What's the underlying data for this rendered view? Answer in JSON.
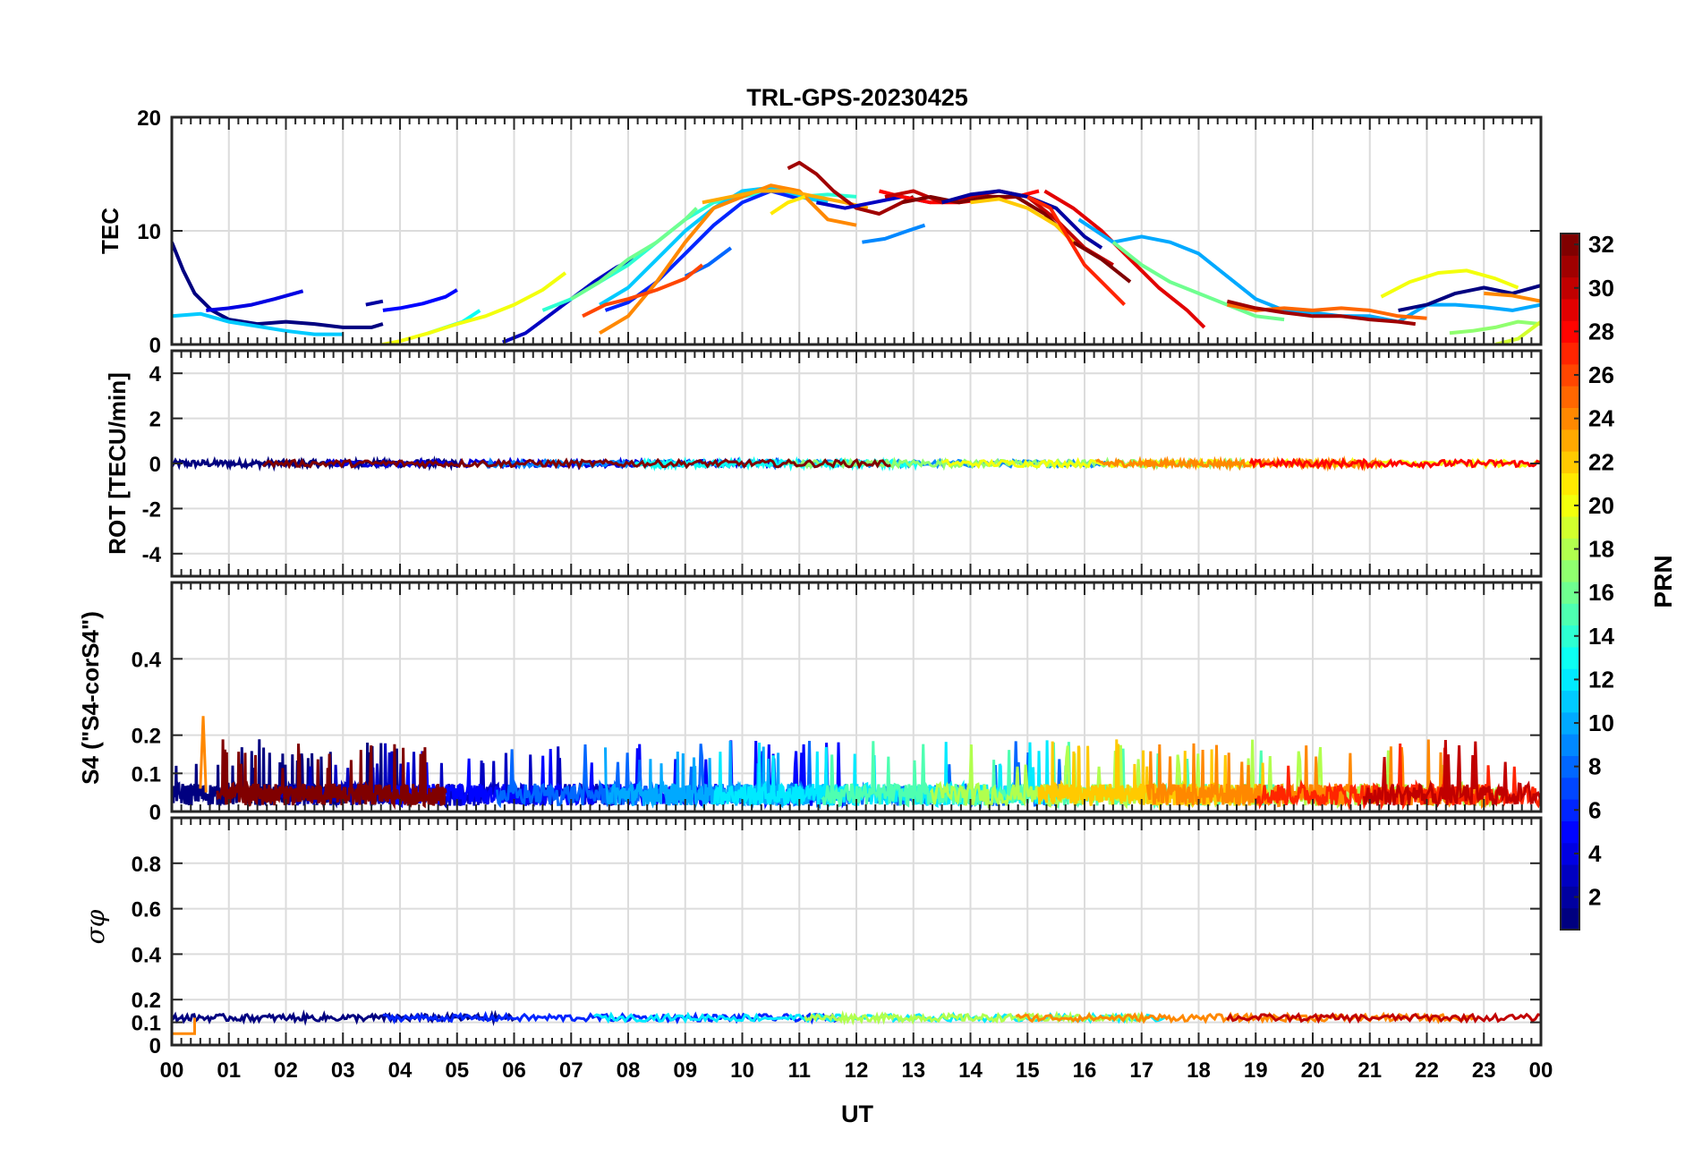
{
  "chart_data": {
    "type": "line",
    "title": "TRL-GPS-20230425",
    "xlabel": "UT",
    "x_tick_labels": [
      "00",
      "01",
      "02",
      "03",
      "04",
      "05",
      "06",
      "07",
      "08",
      "09",
      "10",
      "11",
      "12",
      "13",
      "14",
      "15",
      "16",
      "17",
      "18",
      "19",
      "20",
      "21",
      "22",
      "23",
      "00"
    ],
    "xlim": [
      0,
      24
    ],
    "grid": true,
    "panels": [
      {
        "id": "tec",
        "ylabel": "TEC",
        "ylim": [
          0,
          20
        ],
        "y_ticks": [
          0,
          10,
          20
        ],
        "y_tick_labels": [
          "0",
          "10",
          "20"
        ],
        "series": [
          {
            "prn": 1,
            "x": [
              0.0,
              0.2,
              0.4,
              0.7,
              1.0,
              1.5,
              2.0,
              2.5,
              3.0,
              3.5,
              3.7
            ],
            "y": [
              9.0,
              6.5,
              4.5,
              3.0,
              2.2,
              1.8,
              2.0,
              1.8,
              1.5,
              1.5,
              1.8
            ]
          },
          {
            "prn": 4,
            "x": [
              0.6,
              1.0,
              1.4,
              1.8,
              2.3
            ],
            "y": [
              3.0,
              3.2,
              3.5,
              4.0,
              4.7
            ]
          },
          {
            "prn": 2,
            "x": [
              3.4,
              3.7
            ],
            "y": [
              3.5,
              3.8
            ]
          },
          {
            "prn": 3,
            "x": [
              5.8,
              6.2,
              6.6,
              7.0,
              7.4,
              7.8,
              8.1
            ],
            "y": [
              0.2,
              1.0,
              2.5,
              4.0,
              5.5,
              6.8,
              7.5
            ]
          },
          {
            "prn": 5,
            "x": [
              3.7,
              4.0,
              4.4,
              4.8,
              5.0
            ],
            "y": [
              3.0,
              3.2,
              3.6,
              4.2,
              4.8
            ]
          },
          {
            "prn": 11,
            "x": [
              0.0,
              0.5,
              1.0,
              1.5,
              2.0,
              2.5,
              3.0
            ],
            "y": [
              2.5,
              2.7,
              2.0,
              1.6,
              1.2,
              0.9,
              0.9
            ]
          },
          {
            "prn": 13,
            "x": [
              4.5,
              4.8,
              5.1,
              5.4
            ],
            "y": [
              1.0,
              1.5,
              2.0,
              3.0
            ]
          },
          {
            "prn": 20,
            "x": [
              3.5,
              4.0,
              4.5,
              5.0,
              5.5,
              6.0,
              6.5,
              6.9
            ],
            "y": [
              -0.2,
              0.3,
              1.0,
              1.8,
              2.5,
              3.5,
              4.8,
              6.3
            ]
          },
          {
            "prn": 14,
            "x": [
              6.5,
              7.0,
              7.5,
              8.0,
              8.5,
              9.0,
              9.5,
              10.0,
              10.5,
              11.0,
              11.5,
              12.0
            ],
            "y": [
              3.0,
              4.0,
              5.5,
              7.0,
              9.0,
              11.0,
              12.5,
              13.0,
              13.5,
              13.0,
              13.2,
              13.0
            ]
          },
          {
            "prn": 16,
            "x": [
              7.0,
              7.5,
              8.0,
              8.5,
              9.0,
              9.2
            ],
            "y": [
              4.0,
              5.5,
              7.5,
              9.0,
              11.0,
              12.0
            ]
          },
          {
            "prn": 11,
            "x": [
              7.5,
              8.0,
              8.5,
              9.0,
              9.5,
              10.0,
              10.5,
              11.0,
              11.5
            ],
            "y": [
              3.5,
              5.0,
              7.5,
              10.0,
              12.0,
              13.5,
              13.8,
              13.0,
              12.5
            ]
          },
          {
            "prn": 6,
            "x": [
              7.6,
              8.0,
              8.5,
              9.0,
              9.5,
              10.0,
              10.5,
              11.0
            ],
            "y": [
              3.0,
              3.7,
              5.5,
              8.0,
              10.5,
              12.5,
              13.5,
              12.8
            ]
          },
          {
            "prn": 8,
            "x": [
              9.0,
              9.4,
              9.8
            ],
            "y": [
              6.0,
              7.0,
              8.5
            ]
          },
          {
            "prn": 24,
            "x": [
              7.5,
              8.0,
              8.5,
              9.0,
              9.5,
              10.0,
              10.5,
              11.0,
              11.5,
              12.0
            ],
            "y": [
              1.0,
              2.5,
              5.5,
              9.0,
              12.0,
              13.0,
              14.0,
              13.5,
              11.0,
              10.5
            ]
          },
          {
            "prn": 26,
            "x": [
              7.2,
              7.6,
              8.0,
              8.5,
              9.0,
              9.3
            ],
            "y": [
              2.5,
              3.5,
              4.0,
              4.8,
              5.8,
              7.0
            ]
          },
          {
            "prn": 23,
            "x": [
              9.3,
              9.8,
              10.3,
              10.8,
              11.3,
              11.8,
              12.2
            ],
            "y": [
              12.5,
              13.0,
              13.5,
              13.5,
              13.0,
              12.5,
              12.0
            ]
          },
          {
            "prn": 21,
            "x": [
              10.5,
              10.8,
              11.1
            ],
            "y": [
              11.5,
              12.5,
              13.0
            ]
          },
          {
            "prn": 31,
            "x": [
              10.8,
              11.0,
              11.3,
              11.6,
              12.0,
              12.4,
              12.8,
              13.0
            ],
            "y": [
              15.5,
              16.0,
              15.0,
              13.5,
              12.0,
              11.5,
              12.5,
              13.0
            ]
          },
          {
            "prn": 3,
            "x": [
              11.3,
              11.8,
              12.3,
              12.8,
              13.3
            ],
            "y": [
              12.5,
              12.0,
              12.5,
              13.0,
              12.5
            ]
          },
          {
            "prn": 9,
            "x": [
              12.1,
              12.5,
              12.9,
              13.2
            ],
            "y": [
              9.0,
              9.3,
              10.0,
              10.5
            ]
          },
          {
            "prn": 28,
            "x": [
              12.4,
              12.8,
              13.3,
              13.8,
              14.3,
              14.8,
              15.2
            ],
            "y": [
              13.5,
              13.0,
              12.5,
              12.5,
              12.8,
              13.0,
              13.5
            ]
          },
          {
            "prn": 30,
            "x": [
              12.5,
              13.0,
              13.5,
              14.0,
              14.5,
              15.0,
              15.5,
              16.0,
              16.5
            ],
            "y": [
              13.0,
              13.5,
              12.5,
              13.0,
              13.5,
              13.0,
              11.0,
              8.5,
              7.0
            ]
          },
          {
            "prn": 32,
            "x": [
              12.8,
              13.3,
              13.8,
              14.3,
              14.8,
              15.3,
              15.8,
              16.3,
              16.8
            ],
            "y": [
              12.5,
              13.0,
              12.5,
              13.0,
              13.0,
              11.5,
              9.0,
              7.5,
              5.5
            ]
          },
          {
            "prn": 2,
            "x": [
              13.5,
              14.0,
              14.5,
              15.0,
              15.5,
              16.0,
              16.3
            ],
            "y": [
              12.5,
              13.2,
              13.5,
              13.0,
              12.0,
              9.5,
              8.5
            ]
          },
          {
            "prn": 22,
            "x": [
              14.0,
              14.5,
              15.0,
              15.5,
              15.8
            ],
            "y": [
              12.5,
              12.8,
              12.0,
              10.5,
              9.0
            ]
          },
          {
            "prn": 27,
            "x": [
              15.0,
              15.4,
              15.7,
              16.0,
              16.3,
              16.7
            ],
            "y": [
              13.0,
              12.0,
              9.5,
              7.0,
              5.5,
              3.5
            ]
          },
          {
            "prn": 29,
            "x": [
              15.3,
              15.8,
              16.3,
              16.8,
              17.3,
              17.8,
              18.1
            ],
            "y": [
              13.5,
              12.0,
              10.0,
              7.5,
              5.0,
              3.0,
              1.5
            ]
          },
          {
            "prn": 10,
            "x": [
              15.9,
              16.5,
              17.0,
              17.5,
              18.0,
              18.5,
              19.0,
              19.5,
              20.0,
              20.5,
              21.0,
              21.5,
              22.0,
              22.5,
              23.0,
              23.5,
              24.0
            ],
            "y": [
              11.0,
              9.0,
              9.5,
              9.0,
              8.0,
              6.0,
              4.0,
              3.0,
              2.8,
              2.5,
              2.5,
              2.0,
              3.5,
              3.5,
              3.3,
              3.0,
              3.5
            ]
          },
          {
            "prn": 16,
            "x": [
              16.5,
              17.0,
              17.5,
              18.0,
              18.5,
              19.0,
              19.5
            ],
            "y": [
              9.0,
              7.0,
              5.5,
              4.5,
              3.5,
              2.5,
              2.2
            ]
          },
          {
            "prn": 25,
            "x": [
              18.5,
              19.0,
              19.5,
              20.0,
              20.5,
              21.0,
              21.5,
              22.0
            ],
            "y": [
              3.5,
              3.0,
              3.2,
              3.0,
              3.2,
              3.0,
              2.5,
              2.3
            ]
          },
          {
            "prn": 31,
            "x": [
              18.5,
              19.0,
              19.5,
              20.0,
              20.5,
              21.0,
              21.5,
              21.8
            ],
            "y": [
              3.8,
              3.2,
              2.8,
              2.5,
              2.5,
              2.2,
              2.0,
              1.8
            ]
          },
          {
            "prn": 1,
            "x": [
              21.5,
              22.0,
              22.5,
              23.0,
              23.5,
              24.0
            ],
            "y": [
              3.0,
              3.5,
              4.5,
              5.0,
              4.5,
              5.2
            ]
          },
          {
            "prn": 20,
            "x": [
              21.2,
              21.7,
              22.2,
              22.7,
              23.2,
              23.6
            ],
            "y": [
              4.2,
              5.5,
              6.3,
              6.5,
              5.8,
              5.0
            ]
          },
          {
            "prn": 24,
            "x": [
              23.0,
              23.5,
              24.0
            ],
            "y": [
              4.5,
              4.3,
              3.8
            ]
          },
          {
            "prn": 17,
            "x": [
              22.4,
              22.8,
              23.2,
              23.6,
              24.0
            ],
            "y": [
              1.0,
              1.2,
              1.5,
              2.0,
              1.8
            ]
          },
          {
            "prn": 19,
            "x": [
              23.2,
              23.6,
              24.0
            ],
            "y": [
              0.0,
              0.5,
              2.0
            ]
          }
        ]
      },
      {
        "id": "rot",
        "ylabel": "ROT [TECU/min]",
        "ylim": [
          -5,
          5
        ],
        "y_ticks": [
          -4,
          -2,
          0,
          2,
          4
        ],
        "y_tick_labels": [
          "-4",
          "-2",
          "0",
          "2",
          "4"
        ],
        "baseline": 0,
        "typical_amplitude": 0.15,
        "series_prn": [
          1,
          4,
          9,
          13,
          17,
          20,
          24,
          28,
          32
        ]
      },
      {
        "id": "s4",
        "ylabel": "S4 (\"S4-corS4\")",
        "ylim": [
          0,
          0.6
        ],
        "y_ticks": [
          0,
          0.1,
          0.2,
          0.4
        ],
        "y_tick_labels": [
          "0",
          "0.1",
          "0.2",
          "0.4"
        ],
        "typical_mean": 0.05,
        "typical_max": 0.19,
        "peak": {
          "x": 0.55,
          "y": 0.25
        },
        "series_prn": [
          1,
          3,
          5,
          8,
          10,
          12,
          15,
          18,
          22,
          24,
          27,
          30,
          32
        ]
      },
      {
        "id": "sigma",
        "ylabel": "σφ",
        "ylim": [
          0,
          1.0
        ],
        "y_ticks": [
          0,
          0.1,
          0.2,
          0.4,
          0.6,
          0.8
        ],
        "y_tick_labels": [
          "0",
          "0.1",
          "0.2",
          "0.4",
          "0.6",
          "0.8"
        ],
        "typical_value": 0.12,
        "initial_low": {
          "x": [
            0.0,
            0.4
          ],
          "y": 0.05
        },
        "series_prn": [
          1,
          6,
          12,
          18,
          24,
          30
        ]
      }
    ],
    "colorbar": {
      "label": "PRN",
      "range": [
        1,
        32
      ],
      "tick_labels": [
        "2",
        "4",
        "6",
        "8",
        "10",
        "12",
        "14",
        "16",
        "18",
        "20",
        "22",
        "24",
        "26",
        "28",
        "30",
        "32"
      ],
      "colormap": "jet"
    }
  }
}
